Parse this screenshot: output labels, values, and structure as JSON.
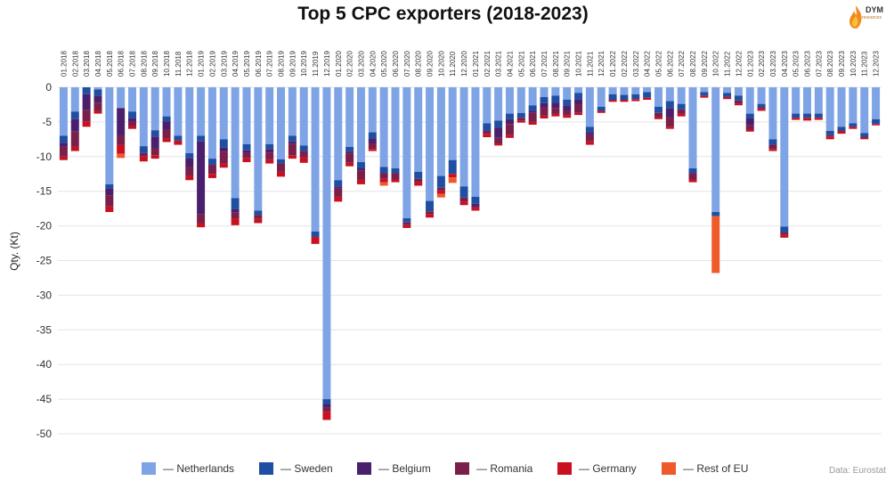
{
  "title": "Top 5 CPC exporters (2018-2023)",
  "logo": {
    "text": "DYM",
    "subtext": "resources"
  },
  "source": "Data: Eurostat",
  "colors": {
    "Netherlands": "#7fa4e6",
    "Sweden": "#1f4fa3",
    "Belgium": "#4a1f6e",
    "Romania": "#7a1e4a",
    "Germany": "#c8101f",
    "Rest of EU": "#ef5a2a",
    "grid": "#e4e4e4"
  },
  "chart_data": {
    "type": "bar",
    "stacked": true,
    "title": "Top 5 CPC exporters (2018-2023)",
    "ylabel": "Qty. (Kt)",
    "xlabel": "",
    "ylim": [
      -50,
      0
    ],
    "yticks": [
      0,
      -5,
      -10,
      -15,
      -20,
      -25,
      -30,
      -35,
      -40,
      -45,
      -50
    ],
    "grid": true,
    "legend_position": "bottom",
    "categories": [
      "01.2018",
      "02.2018",
      "03.2018",
      "04.2018",
      "05.2018",
      "06.2018",
      "07.2018",
      "08.2018",
      "09.2018",
      "10.2018",
      "11.2018",
      "12.2018",
      "01.2019",
      "02.2019",
      "03.2019",
      "04.2019",
      "05.2019",
      "06.2019",
      "07.2019",
      "08.2019",
      "09.2019",
      "10.2019",
      "11.2019",
      "12.2019",
      "01.2020",
      "02.2020",
      "03.2020",
      "04.2020",
      "05.2020",
      "06.2020",
      "07.2020",
      "08.2020",
      "09.2020",
      "10.2020",
      "11.2020",
      "12.2020",
      "01.2021",
      "02.2021",
      "03.2021",
      "04.2021",
      "05.2021",
      "06.2021",
      "07.2021",
      "08.2021",
      "09.2021",
      "10.2021",
      "11.2021",
      "12.2021",
      "01.2022",
      "02.2022",
      "03.2022",
      "04.2022",
      "05.2022",
      "06.2022",
      "07.2022",
      "08.2022",
      "09.2022",
      "10.2022",
      "11.2022",
      "12.2022",
      "01.2023",
      "02.2023",
      "03.2023",
      "04.2023",
      "05.2023",
      "06.2023",
      "07.2023",
      "08.2023",
      "09.2023",
      "10.2023",
      "11.2023",
      "12.2023"
    ],
    "series": [
      {
        "name": "Netherlands",
        "values": [
          -7,
          -3.5,
          0,
          -0.3,
          -14,
          -3,
          -3.5,
          -8.5,
          -6.2,
          -4.2,
          -7,
          -9.5,
          -7,
          -10.3,
          -7.5,
          -16,
          -8.2,
          -17.8,
          -8.2,
          -10.4,
          -7,
          -8.4,
          -20.8,
          -45,
          -13.4,
          -8.6,
          -10.8,
          -6.5,
          -11.5,
          -11.7,
          -18.9,
          -12.2,
          -16.4,
          -12.8,
          -10.5,
          -14.3,
          -15.8,
          -5.2,
          -4.8,
          -3.8,
          -3.7,
          -2.6,
          -1.4,
          -1.2,
          -1.8,
          -0.8,
          -5.7,
          -2.8,
          -1,
          -1.1,
          -1,
          -0.7,
          -2.8,
          -2,
          -2.4,
          -11.7,
          -0.7,
          -18,
          -0.8,
          -1.2,
          -3.8,
          -2.4,
          -7.5,
          -20.1,
          -3.8,
          -3.8,
          -3.8,
          -6.3,
          -5.7,
          -5.2,
          -6.6,
          -4.6
        ]
      },
      {
        "name": "Sweden",
        "values": [
          -1,
          -1.1,
          -1,
          -0.9,
          -0.6,
          0,
          -0.9,
          -1,
          -0.9,
          -0.7,
          -0.7,
          -0.7,
          -0.8,
          -0.8,
          -1.2,
          -1.6,
          -0.9,
          -0.6,
          -0.7,
          -0.6,
          -0.8,
          -0.8,
          -0.8,
          -0.7,
          -0.9,
          -0.7,
          -0.9,
          -0.9,
          -0.9,
          -0.7,
          -0.6,
          -1,
          -1.5,
          -1.7,
          -2,
          -1.6,
          -1,
          -1.1,
          -1,
          -0.8,
          -0.7,
          -0.8,
          -0.9,
          -1,
          -0.8,
          -0.9,
          -0.8,
          -0.6,
          -0.8,
          -0.7,
          -0.7,
          -0.8,
          -0.9,
          -1,
          -0.8,
          -0.7,
          -0.5,
          -0.6,
          -0.6,
          -0.7,
          -0.7,
          -0.5,
          -0.8,
          -0.8,
          -0.6,
          -0.6,
          -0.6,
          -0.6,
          -0.6,
          -0.5,
          -0.6,
          -0.7
        ]
      },
      {
        "name": "Belgium",
        "values": [
          -0.6,
          -1.8,
          -2.3,
          -1,
          -1,
          -4,
          -0.6,
          0,
          -1.7,
          -1.2,
          0,
          -1.3,
          -10.5,
          -0.2,
          -0.6,
          -0.5,
          -0.4,
          0,
          -0.5,
          0,
          -0.4,
          0,
          0,
          -0.5,
          -0.3,
          -0.3,
          -0.3,
          -0.7,
          0,
          0,
          0,
          0,
          0,
          0,
          0,
          0,
          -0.3,
          0,
          -1.5,
          -0.7,
          0,
          -0.3,
          -0.6,
          -0.8,
          -0.8,
          -0.8,
          -0.3,
          0,
          0,
          0,
          0,
          0,
          0,
          -1.3,
          0,
          0,
          0,
          0,
          0,
          0,
          -1,
          0,
          0,
          0,
          0,
          0,
          0,
          0,
          0,
          0,
          0,
          0
        ]
      },
      {
        "name": "Romania",
        "values": [
          -1.4,
          -2.2,
          -1.6,
          -1.2,
          -1.6,
          -1.3,
          -0.6,
          -0.5,
          -1,
          -1.3,
          0,
          -1.3,
          -1.3,
          -1.2,
          -1.7,
          -0.8,
          -0.7,
          -0.6,
          -1,
          -1.2,
          -1.6,
          -0.9,
          0,
          -0.6,
          -1.2,
          -1.3,
          -1.3,
          -0.8,
          -0.8,
          -0.9,
          -0.4,
          -0.5,
          -0.4,
          -0.4,
          0,
          -0.6,
          -0.3,
          -0.4,
          -0.8,
          -1.6,
          -0.4,
          -1.3,
          -1.2,
          -0.8,
          -0.6,
          -1.2,
          -1,
          0,
          0,
          0,
          0,
          0,
          -0.6,
          -1.4,
          -0.6,
          -0.9,
          0,
          0,
          0,
          -0.5,
          -0.6,
          -0.2,
          -0.6,
          -0.4,
          0,
          0,
          0,
          -0.2,
          0,
          0,
          0,
          0
        ]
      },
      {
        "name": "Germany",
        "values": [
          -0.5,
          -0.6,
          -0.8,
          -0.4,
          -0.8,
          -1.3,
          -0.4,
          -0.7,
          -0.5,
          -0.5,
          -0.6,
          -0.6,
          -0.6,
          -0.6,
          -0.6,
          -1,
          -0.6,
          -0.6,
          -0.6,
          -0.7,
          -0.5,
          -0.8,
          -1,
          -1.2,
          -0.7,
          -0.5,
          -0.7,
          -0.3,
          -0.5,
          -0.4,
          -0.4,
          -0.5,
          -0.5,
          -0.5,
          -0.5,
          -0.5,
          -0.4,
          -0.5,
          -0.3,
          -0.4,
          -0.3,
          -0.4,
          -0.4,
          -0.4,
          -0.4,
          -0.3,
          -0.5,
          -0.3,
          -0.3,
          -0.3,
          -0.3,
          -0.3,
          -0.3,
          -0.3,
          -0.4,
          -0.4,
          -0.3,
          0,
          -0.3,
          -0.2,
          -0.3,
          -0.3,
          -0.3,
          -0.4,
          -0.3,
          -0.4,
          -0.3,
          -0.4,
          -0.4,
          -0.3,
          -0.3,
          -0.2
        ]
      },
      {
        "name": "Rest of EU",
        "values": [
          0,
          0,
          0,
          0,
          0,
          -0.6,
          0,
          0,
          0,
          0,
          0,
          0,
          0,
          0,
          0,
          0,
          0,
          0,
          0,
          0,
          0,
          0,
          0,
          0,
          0,
          0,
          0,
          0,
          -0.5,
          0,
          0,
          0,
          0,
          -0.5,
          -0.8,
          0,
          0,
          0,
          0,
          0,
          0,
          0,
          0,
          0,
          0,
          0,
          0,
          0,
          0,
          0,
          0,
          0,
          0,
          0,
          0,
          0,
          0,
          -8.2,
          0,
          0,
          0,
          0,
          0,
          0,
          0,
          0,
          0,
          0,
          0,
          0,
          0,
          0
        ]
      }
    ]
  }
}
